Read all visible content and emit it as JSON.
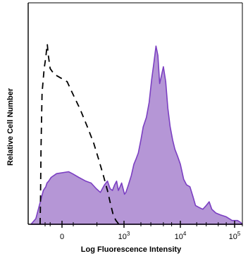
{
  "chart_data": {
    "type": "area",
    "title": "",
    "xlabel": "Log Fluorescence Intensity",
    "ylabel": "Relative Cell Number",
    "x_scale": "biexponential",
    "xlim": [
      -500,
      200000
    ],
    "ylim": [
      0,
      100
    ],
    "grid": false,
    "x_ticks": [
      {
        "value": 0,
        "base": "0",
        "exp": ""
      },
      {
        "value": 1000,
        "base": "10",
        "exp": "3"
      },
      {
        "value": 10000,
        "base": "10",
        "exp": "4"
      },
      {
        "value": 100000,
        "base": "10",
        "exp": "5"
      }
    ],
    "minor_x_ticks": [
      -300,
      -100,
      100,
      300,
      2000,
      3000,
      5000,
      7000,
      20000,
      30000,
      50000,
      70000,
      200000
    ],
    "series": [
      {
        "style": "filled",
        "fill": "#b596d6",
        "stroke": "#7b3fc2",
        "points": [
          [
            -500,
            0
          ],
          [
            -420,
            3
          ],
          [
            -370,
            10
          ],
          [
            -320,
            18
          ],
          [
            -260,
            20
          ],
          [
            -200,
            22
          ],
          [
            -140,
            23
          ],
          [
            -80,
            25
          ],
          [
            -20,
            27
          ],
          [
            30,
            28
          ],
          [
            80,
            27
          ],
          [
            130,
            25
          ],
          [
            180,
            23
          ],
          [
            230,
            22
          ],
          [
            290,
            19
          ],
          [
            350,
            17
          ],
          [
            420,
            21
          ],
          [
            480,
            23
          ],
          [
            540,
            19
          ],
          [
            600,
            18
          ],
          [
            660,
            21
          ],
          [
            720,
            23
          ],
          [
            780,
            18
          ],
          [
            840,
            20
          ],
          [
            900,
            22
          ],
          [
            960,
            19
          ],
          [
            1020,
            16
          ],
          [
            1080,
            17
          ],
          [
            1200,
            21
          ],
          [
            1350,
            26
          ],
          [
            1500,
            32
          ],
          [
            1650,
            35
          ],
          [
            1800,
            38
          ],
          [
            2000,
            45
          ],
          [
            2200,
            52
          ],
          [
            2500,
            57
          ],
          [
            2800,
            65
          ],
          [
            3100,
            77
          ],
          [
            3400,
            86
          ],
          [
            3700,
            95
          ],
          [
            4000,
            90
          ],
          [
            4300,
            75
          ],
          [
            4600,
            79
          ],
          [
            5000,
            84
          ],
          [
            5500,
            76
          ],
          [
            6000,
            62
          ],
          [
            6600,
            52
          ],
          [
            7300,
            45
          ],
          [
            8000,
            40
          ],
          [
            9000,
            36
          ],
          [
            10000,
            32
          ],
          [
            11500,
            24
          ],
          [
            13000,
            21
          ],
          [
            15000,
            20
          ],
          [
            17000,
            15
          ],
          [
            19000,
            10
          ],
          [
            22000,
            9
          ],
          [
            26000,
            8
          ],
          [
            30000,
            10
          ],
          [
            34000,
            12
          ],
          [
            38000,
            8
          ],
          [
            45000,
            6
          ],
          [
            55000,
            5
          ],
          [
            70000,
            4
          ],
          [
            90000,
            2
          ],
          [
            130000,
            2
          ],
          [
            170000,
            1
          ],
          [
            200000,
            0
          ]
        ]
      },
      {
        "style": "dashed",
        "fill": "none",
        "stroke": "#000000",
        "points": [
          [
            -360,
            0
          ],
          [
            -355,
            10
          ],
          [
            -348,
            40
          ],
          [
            -335,
            70
          ],
          [
            -310,
            83
          ],
          [
            -260,
            89
          ],
          [
            -220,
            93
          ],
          [
            -190,
            96
          ],
          [
            -150,
            90
          ],
          [
            -100,
            83
          ],
          [
            -40,
            80
          ],
          [
            20,
            76
          ],
          [
            80,
            70
          ],
          [
            140,
            61
          ],
          [
            200,
            51
          ],
          [
            260,
            43
          ],
          [
            320,
            35
          ],
          [
            400,
            26
          ],
          [
            480,
            18
          ],
          [
            560,
            10
          ],
          [
            620,
            5
          ],
          [
            700,
            2
          ],
          [
            800,
            0
          ]
        ]
      }
    ]
  }
}
